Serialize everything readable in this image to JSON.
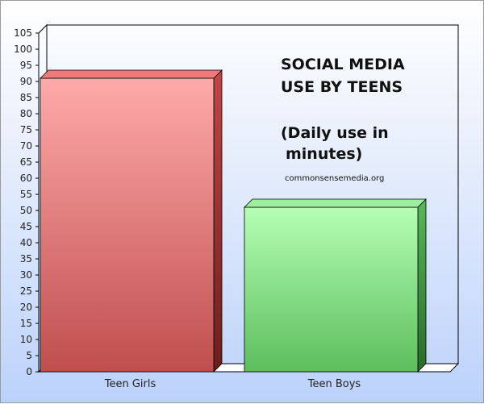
{
  "chart_data": {
    "type": "bar",
    "categories": [
      "Teen Girls",
      "Teen Boys"
    ],
    "values": [
      91,
      51
    ],
    "ylim": [
      0,
      105
    ],
    "yticks": [
      0,
      5,
      10,
      15,
      20,
      25,
      30,
      35,
      40,
      45,
      50,
      55,
      60,
      65,
      70,
      75,
      80,
      85,
      90,
      95,
      100,
      105
    ],
    "grid": false,
    "colors": [
      "#e06a6e",
      "#7bd37b"
    ],
    "annotations": {
      "title_line1": "SOCIAL MEDIA",
      "title_line2": "USE BY TEENS",
      "sub_line1": "(Daily use in",
      "sub_line2": "minutes)",
      "source": "commonsensemedia.org"
    }
  }
}
